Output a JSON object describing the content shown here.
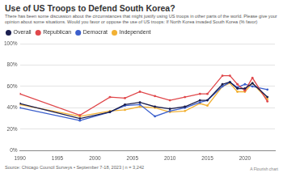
{
  "chart_data": {
    "type": "line",
    "title": "Use of US Troops to Defend South Korea?",
    "subtitle": "There has been some discussion about the circumstances that might justify using US troops in other parts of the world. Please give your opinion about some situations. Would you favor or oppose the use of US troops: If North Korea invaded South Korea (% favor)",
    "source": "Source: Chicago Council Surveys • September 7-18, 2023 | n = 3,242",
    "credit": "A Flourish chart",
    "x": [
      1990,
      1998,
      2002,
      2004,
      2006,
      2008,
      2010,
      2012,
      2014,
      2015,
      2017,
      2018,
      2019,
      2020,
      2021,
      2023
    ],
    "series": [
      {
        "name": "Overall",
        "color": "#1b1f4f",
        "values": [
          44,
          30,
          36,
          43,
          45,
          41,
          39,
          41,
          47,
          47,
          62,
          64,
          58,
          58,
          63,
          50
        ]
      },
      {
        "name": "Republican",
        "color": "#e0484b",
        "values": [
          53,
          33,
          50,
          49,
          55,
          51,
          47,
          50,
          53,
          53,
          70,
          70,
          62,
          56,
          68,
          46
        ]
      },
      {
        "name": "Democrat",
        "color": "#3b5fcc",
        "values": [
          40,
          28,
          36,
          42,
          43,
          32,
          37,
          40,
          45,
          47,
          60,
          64,
          59,
          62,
          60,
          57
        ]
      },
      {
        "name": "Independent",
        "color": "#f2b134",
        "values": [
          43,
          32,
          37,
          38,
          41,
          40,
          36,
          37,
          44,
          42,
          60,
          63,
          55,
          55,
          63,
          48
        ]
      }
    ],
    "xlim": [
      1990,
      2024
    ],
    "xticks": [
      1990,
      1995,
      2000,
      2005,
      2010,
      2015,
      2020
    ],
    "ylim": [
      0,
      100
    ],
    "yticks": [
      {
        "value": 0,
        "label": "0%"
      },
      {
        "value": 20,
        "label": "20%"
      },
      {
        "value": 40,
        "label": "40%"
      },
      {
        "value": 60,
        "label": "60%"
      },
      {
        "value": 80,
        "label": "80%"
      },
      {
        "value": 100,
        "label": "100%"
      }
    ],
    "grid": true,
    "legend": "top-left",
    "marker": "circle"
  }
}
